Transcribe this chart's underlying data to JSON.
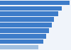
{
  "values": [
    98,
    87,
    82,
    76,
    73,
    69,
    65,
    61,
    54
  ],
  "bar_color": "#3d7cc9",
  "last_bar_color": "#a0bfdf",
  "background_color": "#f0f4fa",
  "bar_height": 0.82,
  "xlim_max": 100,
  "n_bars": 9
}
